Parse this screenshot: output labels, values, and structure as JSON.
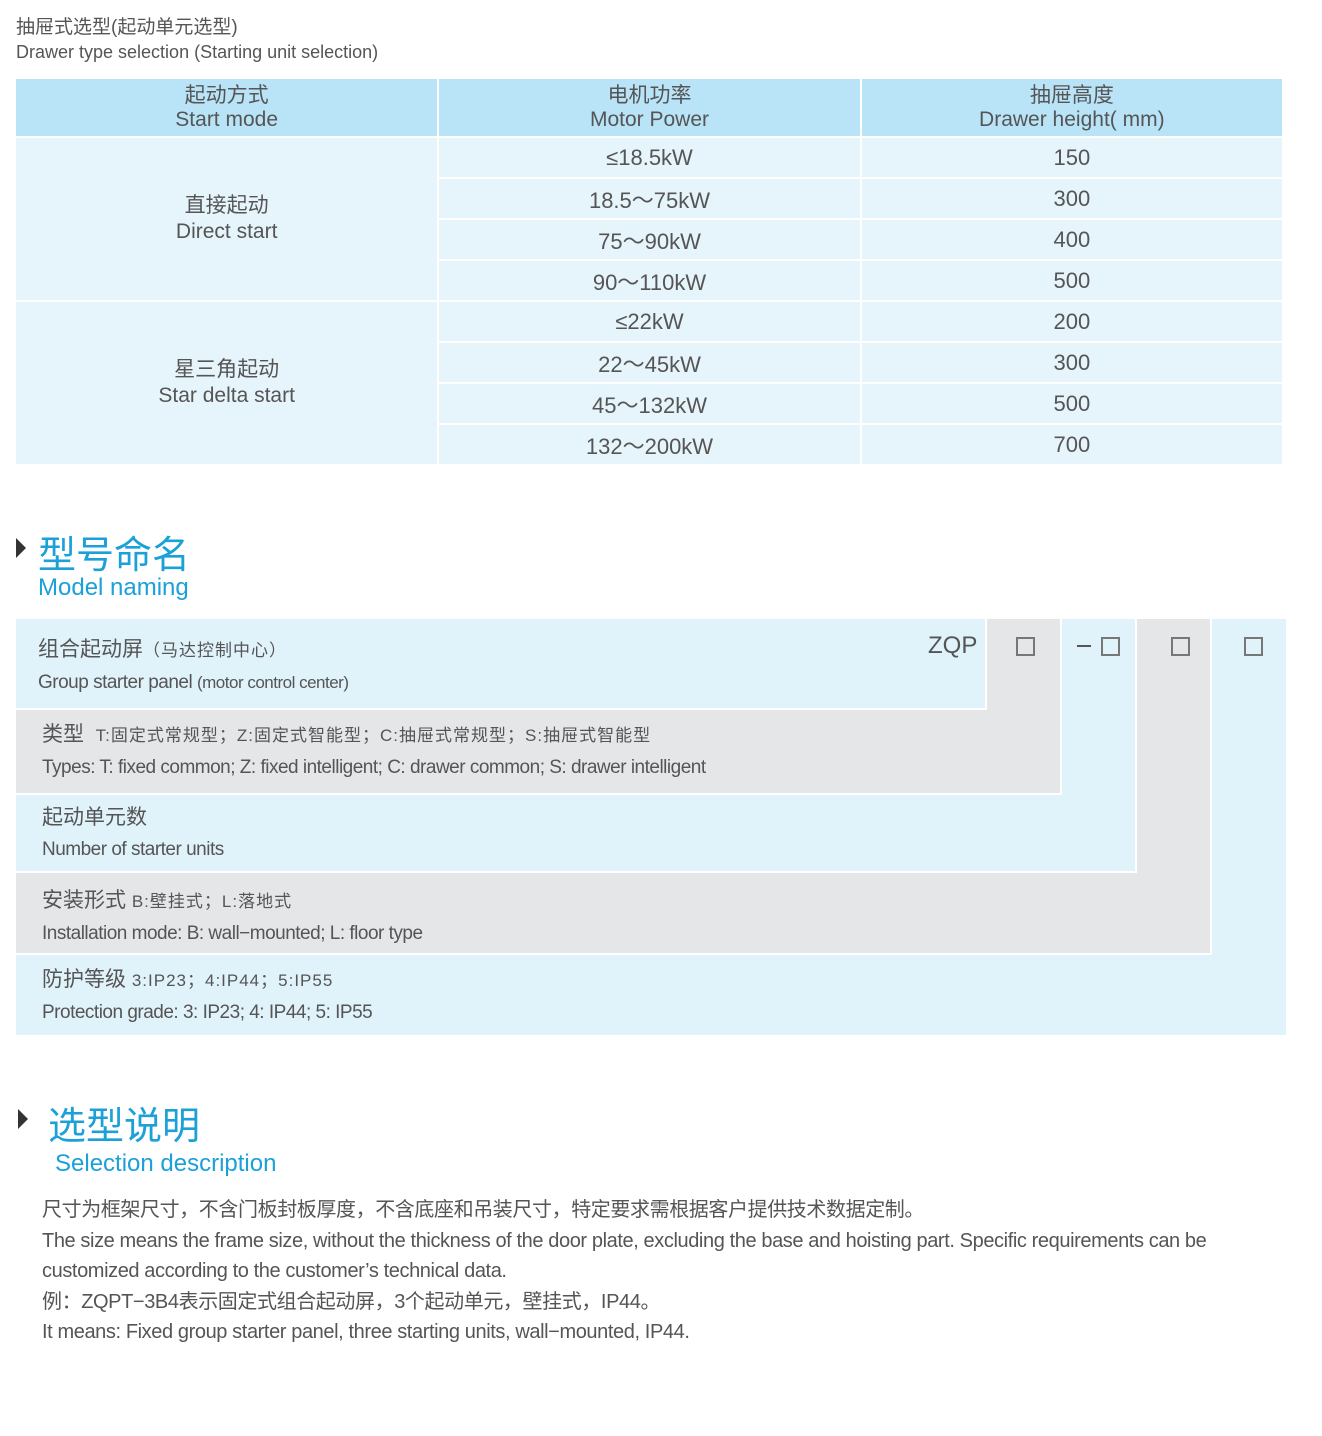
{
  "header": {
    "title_cn": "抽屉式选型(起动单元选型)",
    "title_en": "Drawer type selection (Starting unit selection)"
  },
  "table": {
    "columns": [
      {
        "cn": "起动方式",
        "en": "Start mode"
      },
      {
        "cn": "电机功率",
        "en": "Motor Power"
      },
      {
        "cn": "抽屉高度",
        "en": "Drawer height( mm)"
      }
    ],
    "groups": [
      {
        "cn": "直接起动",
        "en": "Direct start",
        "rows": [
          {
            "power": "≤18.5kW",
            "height": "150"
          },
          {
            "power": "18.5～75kW",
            "height": "300"
          },
          {
            "power": "75～90kW",
            "height": "400"
          },
          {
            "power": "90～110kW",
            "height": "500"
          }
        ]
      },
      {
        "cn": "星三角起动",
        "en": "Star delta start",
        "rows": [
          {
            "power": "≤22kW",
            "height": "200"
          },
          {
            "power": "22～45kW",
            "height": "300"
          },
          {
            "power": "45～132kW",
            "height": "500"
          },
          {
            "power": "132～200kW",
            "height": "700"
          }
        ]
      }
    ]
  },
  "model_naming": {
    "title_cn": "型号命名",
    "title_en": "Model naming",
    "code": {
      "prefix": "ZQP",
      "dash": "−",
      "box": "□"
    },
    "rows": [
      {
        "cn": "组合起动屏",
        "cn_note": "（马达控制中心）",
        "en": "Group starter panel",
        "en_note": "(motor control center)"
      },
      {
        "cn": "类型",
        "cn_note": "T:固定式常规型；Z:固定式智能型；C:抽屉式常规型；S:抽屉式智能型",
        "en": "Types: T: fixed common; Z: fixed intelligent; C: drawer common; S: drawer intelligent"
      },
      {
        "cn": "起动单元数",
        "en": "Number  of  starter units"
      },
      {
        "cn": "安装形式",
        "cn_note": "B:壁挂式；L:落地式",
        "en": "Installation mode: B: wall−mounted; L: floor type"
      },
      {
        "cn": "防护等级",
        "cn_note": "3:IP23；4:IP44；5:IP55",
        "en": "Protection grade:  3: IP23; 4: IP44; 5: IP55"
      }
    ]
  },
  "selection": {
    "title_cn": "选型说明",
    "title_en": "Selection description",
    "lines": [
      "尺寸为框架尺寸，不含门板封板厚度，不含底座和吊装尺寸，特定要求需根据客户提供技术数据定制。",
      "The size means the frame size, without the thickness of the door plate, excluding the base and hoisting part. Specific requirements can be customized according to the customer’s technical data.",
      "例：ZQPT−3B4表示固定式组合起动屏，3个起动单元，壁挂式，IP44。",
      "It means: Fixed group starter panel, three starting units, wall−mounted, IP44."
    ]
  },
  "colors": {
    "accent": "#1ba0d8",
    "header_bg": "#b9e3f7",
    "cell_bg": "#e6f4fb",
    "gray_bg": "#e5e6e8"
  }
}
